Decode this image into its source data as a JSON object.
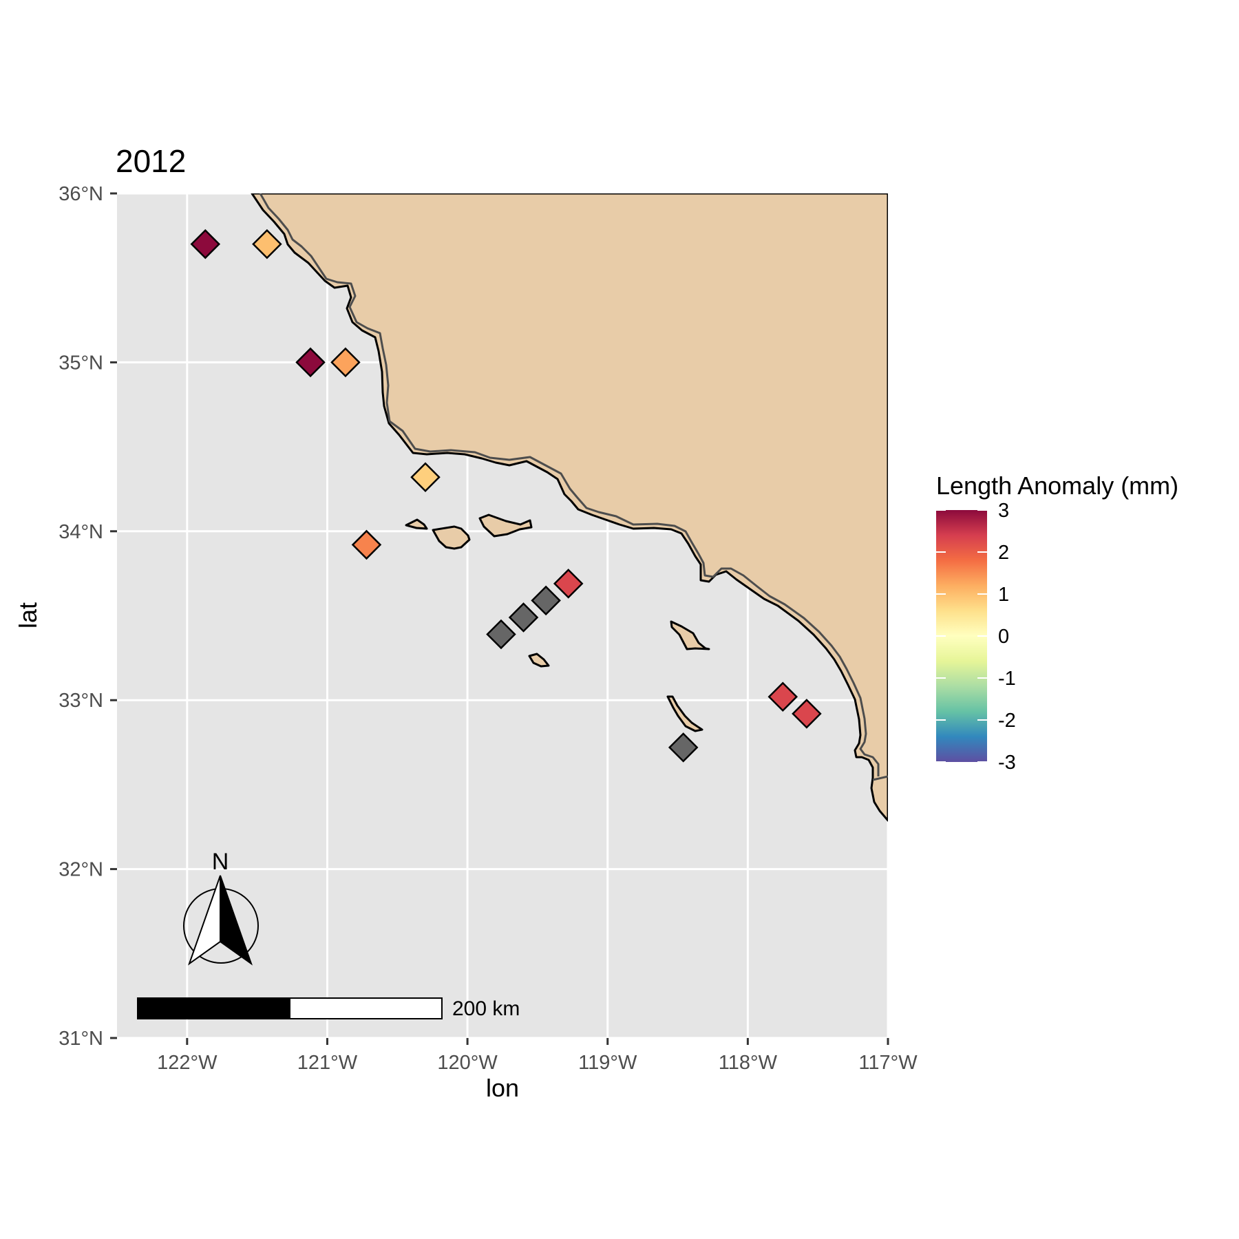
{
  "chart_data": {
    "type": "scatter",
    "title": "2012",
    "xlabel": "lon",
    "ylabel": "lat",
    "xlim": [
      -122.5,
      -117.0
    ],
    "ylim": [
      31.0,
      36.0
    ],
    "x_ticks": [
      {
        "value": -122,
        "label": "122°W"
      },
      {
        "value": -121,
        "label": "121°W"
      },
      {
        "value": -120,
        "label": "120°W"
      },
      {
        "value": -119,
        "label": "119°W"
      },
      {
        "value": -118,
        "label": "118°W"
      },
      {
        "value": -117,
        "label": "117°W"
      }
    ],
    "y_ticks": [
      {
        "value": 31,
        "label": "31°N"
      },
      {
        "value": 32,
        "label": "32°N"
      },
      {
        "value": 33,
        "label": "33°N"
      },
      {
        "value": 34,
        "label": "34°N"
      },
      {
        "value": 35,
        "label": "35°N"
      },
      {
        "value": 36,
        "label": "36°N"
      }
    ],
    "grid": true,
    "legend": {
      "title": "Length Anomaly (mm)",
      "position": "right",
      "limits": [
        -3,
        3
      ],
      "breaks": [
        3,
        2,
        1,
        0,
        -1,
        -2,
        -3
      ],
      "labels": [
        "3",
        "2",
        "1",
        "0",
        "-1",
        "-2",
        "-3"
      ],
      "colors": [
        "#8c0a3c",
        "#d53e4f",
        "#f46d43",
        "#fdae61",
        "#fee08b",
        "#ffffbf",
        "#e6f598",
        "#abdda4",
        "#66c2a5",
        "#3288bd",
        "#5e4fa2"
      ]
    },
    "na_color": "#666666",
    "points": [
      {
        "lon": -121.87,
        "lat": 35.7,
        "anomaly": 3.0
      },
      {
        "lon": -121.43,
        "lat": 35.7,
        "anomaly": 1.0
      },
      {
        "lon": -121.12,
        "lat": 35.0,
        "anomaly": 3.0
      },
      {
        "lon": -120.87,
        "lat": 35.0,
        "anomaly": 1.3
      },
      {
        "lon": -120.3,
        "lat": 34.32,
        "anomaly": 0.8
      },
      {
        "lon": -120.72,
        "lat": 33.92,
        "anomaly": 1.6
      },
      {
        "lon": -119.28,
        "lat": 33.69,
        "anomaly": 2.3
      },
      {
        "lon": -119.44,
        "lat": 33.59,
        "anomaly": null
      },
      {
        "lon": -119.6,
        "lat": 33.49,
        "anomaly": null
      },
      {
        "lon": -119.76,
        "lat": 33.39,
        "anomaly": null
      },
      {
        "lon": -117.75,
        "lat": 33.02,
        "anomaly": 2.3
      },
      {
        "lon": -117.58,
        "lat": 32.92,
        "anomaly": 2.3
      },
      {
        "lon": -118.46,
        "lat": 32.72,
        "anomaly": null
      }
    ],
    "colors": {
      "panel": "#e5e5e5",
      "land": "#e8cca8",
      "grid": "#ffffff"
    }
  },
  "scale_bar": {
    "label": "200 km"
  },
  "north_arrow": {
    "label": "N"
  }
}
